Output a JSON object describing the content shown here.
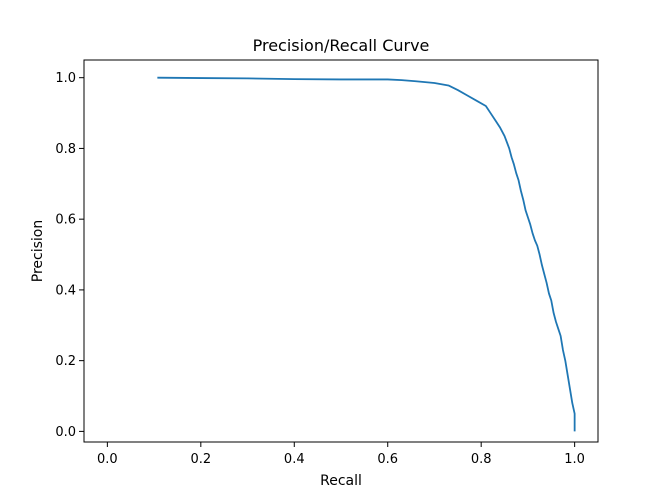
{
  "chart_data": {
    "type": "line",
    "title": "Precision/Recall Curve",
    "xlabel": "Recall",
    "ylabel": "Precision",
    "xlim": [
      -0.05,
      1.05
    ],
    "ylim": [
      -0.03,
      1.05
    ],
    "grid": false,
    "xticks": [
      0.0,
      0.2,
      0.4,
      0.6,
      0.8,
      1.0
    ],
    "xtick_labels": [
      "0.0",
      "0.2",
      "0.4",
      "0.6",
      "0.8",
      "1.0"
    ],
    "yticks": [
      0.0,
      0.2,
      0.4,
      0.6,
      0.8,
      1.0
    ],
    "ytick_labels": [
      "0.0",
      "0.2",
      "0.4",
      "0.6",
      "0.8",
      "1.0"
    ],
    "series": [
      {
        "color": "#1f77b4",
        "x": [
          0.107,
          0.2,
          0.3,
          0.4,
          0.5,
          0.55,
          0.6,
          0.63,
          0.66,
          0.7,
          0.73,
          0.75,
          0.77,
          0.79,
          0.81,
          0.82,
          0.83,
          0.84,
          0.85,
          0.86,
          0.865,
          0.87,
          0.875,
          0.88,
          0.885,
          0.89,
          0.895,
          0.9,
          0.905,
          0.91,
          0.915,
          0.92,
          0.925,
          0.93,
          0.935,
          0.94,
          0.945,
          0.95,
          0.955,
          0.96,
          0.965,
          0.97,
          0.975,
          0.98,
          0.985,
          0.99,
          0.995,
          1.0,
          1.0
        ],
        "y": [
          1.0,
          0.999,
          0.998,
          0.996,
          0.995,
          0.995,
          0.995,
          0.993,
          0.99,
          0.985,
          0.978,
          0.965,
          0.95,
          0.935,
          0.92,
          0.9,
          0.88,
          0.86,
          0.835,
          0.8,
          0.775,
          0.755,
          0.73,
          0.71,
          0.68,
          0.655,
          0.625,
          0.605,
          0.585,
          0.56,
          0.54,
          0.525,
          0.5,
          0.47,
          0.445,
          0.42,
          0.39,
          0.37,
          0.335,
          0.31,
          0.29,
          0.27,
          0.23,
          0.2,
          0.16,
          0.12,
          0.08,
          0.05,
          0.0
        ]
      }
    ]
  }
}
